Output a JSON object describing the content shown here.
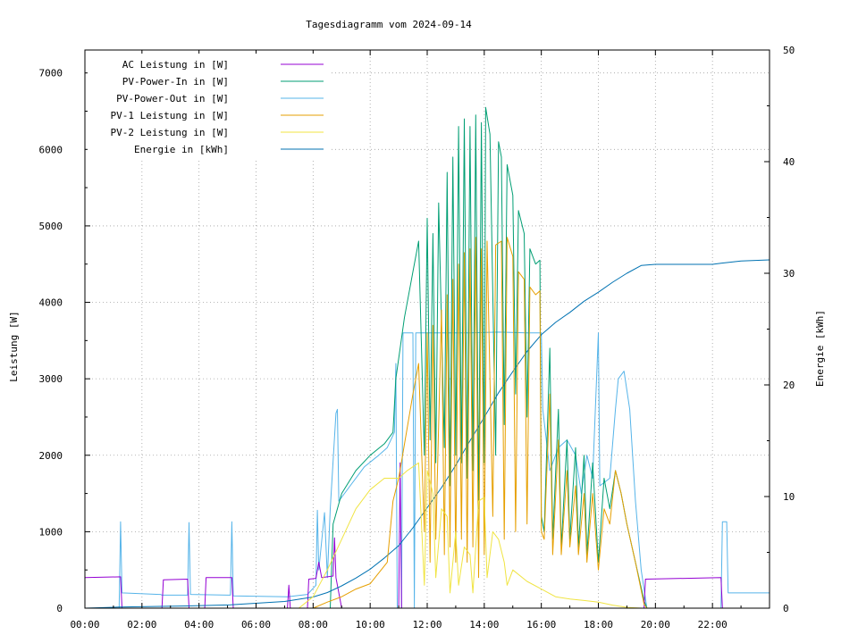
{
  "chart_data": {
    "type": "line",
    "title": "Tagesdiagramm vom 2024-09-14",
    "ylabel": "Leistung [W]",
    "y2label": "Energie [kWh]",
    "xlim": [
      0,
      24
    ],
    "ylim": [
      0,
      7300
    ],
    "y2lim": [
      0,
      50
    ],
    "grid": true,
    "legend_position": "top-left",
    "x_ticks": [
      "00:00",
      "02:00",
      "04:00",
      "06:00",
      "08:00",
      "10:00",
      "12:00",
      "14:00",
      "16:00",
      "18:00",
      "20:00",
      "22:00"
    ],
    "y_ticks": [
      "0",
      "1000",
      "2000",
      "3000",
      "4000",
      "5000",
      "6000",
      "7000"
    ],
    "y2_ticks": [
      "0",
      "10",
      "20",
      "30",
      "40",
      "50"
    ],
    "series": [
      {
        "name": "AC Leistung in [W]",
        "color": "#9400d3",
        "axis": "left",
        "points": [
          [
            0,
            400
          ],
          [
            1.25,
            410
          ],
          [
            1.3,
            0
          ],
          [
            2.7,
            0
          ],
          [
            2.75,
            370
          ],
          [
            3.6,
            380
          ],
          [
            3.65,
            0
          ],
          [
            4.2,
            0
          ],
          [
            4.25,
            400
          ],
          [
            5.15,
            400
          ],
          [
            5.2,
            0
          ],
          [
            7.1,
            0
          ],
          [
            7.15,
            300
          ],
          [
            7.2,
            0
          ],
          [
            7.8,
            0
          ],
          [
            7.85,
            380
          ],
          [
            8.1,
            390
          ],
          [
            8.2,
            600
          ],
          [
            8.3,
            400
          ],
          [
            8.7,
            420
          ],
          [
            8.75,
            920
          ],
          [
            8.8,
            400
          ],
          [
            9.0,
            0
          ],
          [
            11.0,
            0
          ],
          [
            11.05,
            1900
          ],
          [
            11.1,
            0
          ],
          [
            19.6,
            0
          ],
          [
            19.65,
            380
          ],
          [
            22.3,
            400
          ],
          [
            22.35,
            0
          ],
          [
            24,
            0
          ]
        ]
      },
      {
        "name": "PV-Power-In in [W]",
        "color": "#009e73",
        "axis": "left",
        "points": [
          [
            0,
            0
          ],
          [
            8.6,
            0
          ],
          [
            8.7,
            1100
          ],
          [
            9,
            1500
          ],
          [
            9.5,
            1800
          ],
          [
            10,
            2000
          ],
          [
            10.5,
            2150
          ],
          [
            10.8,
            2300
          ],
          [
            10.9,
            3000
          ],
          [
            11.2,
            3800
          ],
          [
            11.5,
            4400
          ],
          [
            11.7,
            4800
          ],
          [
            11.9,
            2000
          ],
          [
            12,
            5100
          ],
          [
            12.1,
            2200
          ],
          [
            12.2,
            4900
          ],
          [
            12.3,
            1900
          ],
          [
            12.4,
            5300
          ],
          [
            12.6,
            2100
          ],
          [
            12.7,
            5700
          ],
          [
            12.8,
            1600
          ],
          [
            12.9,
            5900
          ],
          [
            13.0,
            2000
          ],
          [
            13.1,
            6300
          ],
          [
            13.2,
            1900
          ],
          [
            13.3,
            6400
          ],
          [
            13.4,
            1700
          ],
          [
            13.5,
            6300
          ],
          [
            13.6,
            1800
          ],
          [
            13.7,
            6450
          ],
          [
            13.8,
            1300
          ],
          [
            13.9,
            6350
          ],
          [
            14.0,
            1900
          ],
          [
            14.05,
            6550
          ],
          [
            14.2,
            6200
          ],
          [
            14.4,
            2000
          ],
          [
            14.5,
            6100
          ],
          [
            14.6,
            5900
          ],
          [
            14.7,
            2400
          ],
          [
            14.8,
            5800
          ],
          [
            15.0,
            5400
          ],
          [
            15.1,
            2800
          ],
          [
            15.2,
            5200
          ],
          [
            15.4,
            4900
          ],
          [
            15.5,
            2500
          ],
          [
            15.6,
            4700
          ],
          [
            15.8,
            4500
          ],
          [
            15.95,
            4550
          ],
          [
            16.0,
            1200
          ],
          [
            16.1,
            1000
          ],
          [
            16.3,
            3400
          ],
          [
            16.4,
            900
          ],
          [
            16.6,
            2600
          ],
          [
            16.7,
            800
          ],
          [
            16.9,
            2200
          ],
          [
            17.0,
            900
          ],
          [
            17.2,
            2100
          ],
          [
            17.3,
            800
          ],
          [
            17.5,
            2000
          ],
          [
            17.6,
            700
          ],
          [
            17.8,
            1900
          ],
          [
            18.0,
            600
          ],
          [
            18.2,
            1700
          ],
          [
            18.4,
            1300
          ],
          [
            18.6,
            1800
          ],
          [
            18.8,
            1500
          ],
          [
            19.0,
            1100
          ],
          [
            19.3,
            600
          ],
          [
            19.6,
            100
          ],
          [
            19.7,
            0
          ],
          [
            24,
            0
          ]
        ]
      },
      {
        "name": "PV-Power-Out in [W]",
        "color": "#56b4e9",
        "axis": "left",
        "points": [
          [
            0,
            0
          ],
          [
            1.2,
            0
          ],
          [
            1.25,
            1130
          ],
          [
            1.3,
            200
          ],
          [
            2.6,
            180
          ],
          [
            2.65,
            180
          ],
          [
            2.7,
            170
          ],
          [
            3.6,
            170
          ],
          [
            3.65,
            1120
          ],
          [
            3.7,
            180
          ],
          [
            5.1,
            170
          ],
          [
            5.15,
            1130
          ],
          [
            5.2,
            160
          ],
          [
            7.1,
            150
          ],
          [
            7.8,
            180
          ],
          [
            8.1,
            300
          ],
          [
            8.15,
            1280
          ],
          [
            8.2,
            500
          ],
          [
            8.4,
            1250
          ],
          [
            8.5,
            400
          ],
          [
            8.6,
            1300
          ],
          [
            8.8,
            2550
          ],
          [
            8.85,
            2600
          ],
          [
            8.9,
            1400
          ],
          [
            9.3,
            1600
          ],
          [
            9.8,
            1850
          ],
          [
            10.3,
            2000
          ],
          [
            10.6,
            2100
          ],
          [
            10.85,
            2300
          ],
          [
            10.9,
            3200
          ],
          [
            10.95,
            0
          ],
          [
            11.1,
            0
          ],
          [
            11.15,
            3600
          ],
          [
            11.5,
            3600
          ],
          [
            11.55,
            0
          ],
          [
            11.6,
            3600
          ],
          [
            12.5,
            3600
          ],
          [
            13.5,
            3600
          ],
          [
            14.5,
            3610
          ],
          [
            15.5,
            3600
          ],
          [
            16.0,
            3600
          ],
          [
            16.05,
            2600
          ],
          [
            16.3,
            1800
          ],
          [
            16.6,
            2100
          ],
          [
            16.9,
            2200
          ],
          [
            17.2,
            2000
          ],
          [
            17.4,
            1500
          ],
          [
            17.6,
            2000
          ],
          [
            17.8,
            1700
          ],
          [
            18.0,
            3600
          ],
          [
            18.05,
            1600
          ],
          [
            18.4,
            1700
          ],
          [
            18.6,
            2600
          ],
          [
            18.7,
            3000
          ],
          [
            18.9,
            3100
          ],
          [
            19.1,
            2600
          ],
          [
            19.3,
            1400
          ],
          [
            19.5,
            500
          ],
          [
            19.7,
            0
          ],
          [
            22.3,
            0
          ],
          [
            22.35,
            1130
          ],
          [
            22.5,
            1130
          ],
          [
            22.55,
            200
          ],
          [
            24,
            200
          ]
        ]
      },
      {
        "name": "PV-1 Leistung in [W]",
        "color": "#e69f00",
        "axis": "left",
        "points": [
          [
            0,
            0
          ],
          [
            8.0,
            0
          ],
          [
            8.5,
            80
          ],
          [
            9.0,
            150
          ],
          [
            9.5,
            250
          ],
          [
            10.0,
            320
          ],
          [
            10.6,
            600
          ],
          [
            10.8,
            1400
          ],
          [
            11.0,
            1700
          ],
          [
            11.5,
            2800
          ],
          [
            11.7,
            3200
          ],
          [
            11.9,
            1000
          ],
          [
            12.0,
            3600
          ],
          [
            12.1,
            600
          ],
          [
            12.2,
            3700
          ],
          [
            12.3,
            900
          ],
          [
            12.5,
            3900
          ],
          [
            12.6,
            700
          ],
          [
            12.7,
            4100
          ],
          [
            12.8,
            800
          ],
          [
            12.9,
            4300
          ],
          [
            13.0,
            600
          ],
          [
            13.1,
            4500
          ],
          [
            13.2,
            900
          ],
          [
            13.3,
            4650
          ],
          [
            13.4,
            600
          ],
          [
            13.5,
            4700
          ],
          [
            13.6,
            800
          ],
          [
            13.7,
            4850
          ],
          [
            13.8,
            400
          ],
          [
            13.9,
            4700
          ],
          [
            14.0,
            700
          ],
          [
            14.1,
            4800
          ],
          [
            14.3,
            1200
          ],
          [
            14.4,
            4750
          ],
          [
            14.6,
            4800
          ],
          [
            14.7,
            900
          ],
          [
            14.8,
            4850
          ],
          [
            15.0,
            4600
          ],
          [
            15.1,
            1000
          ],
          [
            15.2,
            4400
          ],
          [
            15.4,
            4300
          ],
          [
            15.5,
            1100
          ],
          [
            15.6,
            4200
          ],
          [
            15.8,
            4100
          ],
          [
            15.95,
            4150
          ],
          [
            16.0,
            1000
          ],
          [
            16.1,
            900
          ],
          [
            16.3,
            2800
          ],
          [
            16.4,
            700
          ],
          [
            16.6,
            2200
          ],
          [
            16.7,
            700
          ],
          [
            16.9,
            1800
          ],
          [
            17.0,
            800
          ],
          [
            17.2,
            1600
          ],
          [
            17.3,
            700
          ],
          [
            17.5,
            1500
          ],
          [
            17.6,
            600
          ],
          [
            17.8,
            1500
          ],
          [
            18.0,
            500
          ],
          [
            18.2,
            1300
          ],
          [
            18.4,
            1100
          ],
          [
            18.6,
            1800
          ],
          [
            18.8,
            1500
          ],
          [
            19.0,
            1100
          ],
          [
            19.3,
            600
          ],
          [
            19.6,
            50
          ],
          [
            19.7,
            0
          ],
          [
            24,
            0
          ]
        ]
      },
      {
        "name": "PV-2 Leistung in [W]",
        "color": "#f0e442",
        "axis": "left",
        "points": [
          [
            0,
            0
          ],
          [
            7.5,
            0
          ],
          [
            8.0,
            150
          ],
          [
            8.5,
            500
          ],
          [
            9.0,
            900
          ],
          [
            9.5,
            1300
          ],
          [
            10.0,
            1550
          ],
          [
            10.5,
            1700
          ],
          [
            11.0,
            1700
          ],
          [
            11.3,
            1800
          ],
          [
            11.7,
            1900
          ],
          [
            11.9,
            300
          ],
          [
            12.0,
            1800
          ],
          [
            12.2,
            1500
          ],
          [
            12.3,
            400
          ],
          [
            12.5,
            1300
          ],
          [
            12.7,
            1200
          ],
          [
            12.8,
            200
          ],
          [
            13.0,
            1000
          ],
          [
            13.1,
            300
          ],
          [
            13.3,
            800
          ],
          [
            13.5,
            700
          ],
          [
            13.6,
            200
          ],
          [
            13.8,
            1400
          ],
          [
            14.0,
            1450
          ],
          [
            14.1,
            400
          ],
          [
            14.3,
            1000
          ],
          [
            14.5,
            900
          ],
          [
            14.7,
            600
          ],
          [
            14.8,
            300
          ],
          [
            15.0,
            500
          ],
          [
            15.5,
            350
          ],
          [
            16.0,
            250
          ],
          [
            16.5,
            150
          ],
          [
            17.0,
            120
          ],
          [
            17.5,
            100
          ],
          [
            18.0,
            80
          ],
          [
            18.5,
            40
          ],
          [
            19.0,
            10
          ],
          [
            19.5,
            0
          ],
          [
            24,
            0
          ]
        ]
      },
      {
        "name": "Energie in [kWh]",
        "color": "#0072b2",
        "axis": "right",
        "points": [
          [
            0,
            0
          ],
          [
            1.2,
            0.1
          ],
          [
            3.6,
            0.2
          ],
          [
            5.1,
            0.3
          ],
          [
            7.0,
            0.6
          ],
          [
            8.0,
            1.0
          ],
          [
            8.5,
            1.4
          ],
          [
            9.0,
            2.0
          ],
          [
            9.5,
            2.7
          ],
          [
            10.0,
            3.5
          ],
          [
            10.5,
            4.5
          ],
          [
            11.0,
            5.6
          ],
          [
            11.5,
            7.2
          ],
          [
            12.0,
            9.0
          ],
          [
            12.5,
            10.8
          ],
          [
            13.0,
            12.8
          ],
          [
            13.5,
            15.0
          ],
          [
            14.0,
            17.1
          ],
          [
            14.5,
            19.3
          ],
          [
            15.0,
            21.2
          ],
          [
            15.5,
            23.0
          ],
          [
            16.0,
            24.5
          ],
          [
            16.5,
            25.6
          ],
          [
            17.0,
            26.5
          ],
          [
            17.5,
            27.5
          ],
          [
            18.0,
            28.3
          ],
          [
            18.5,
            29.2
          ],
          [
            19.0,
            30.0
          ],
          [
            19.5,
            30.7
          ],
          [
            20.0,
            30.8
          ],
          [
            22.0,
            30.8
          ],
          [
            22.3,
            30.9
          ],
          [
            23.0,
            31.1
          ],
          [
            24,
            31.2
          ]
        ]
      }
    ]
  }
}
